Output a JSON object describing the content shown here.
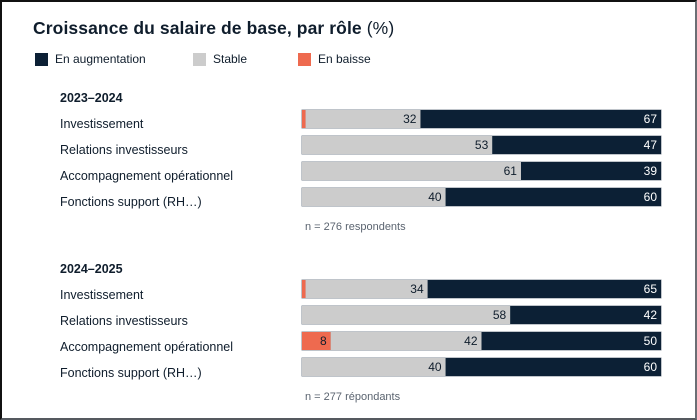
{
  "chart_data": {
    "type": "bar",
    "orientation": "horizontal",
    "stacked": true,
    "normalized_100": true,
    "title": "Croissance du salaire de base, par rôle",
    "title_suffix": "(%)",
    "xlabel": "",
    "ylabel": "",
    "xlim": [
      0,
      100
    ],
    "grid": false,
    "legend_position": "top-left",
    "legend": [
      {
        "key": "increase",
        "label": "En augmentation",
        "color": "#0c2035"
      },
      {
        "key": "stable",
        "label": "Stable",
        "color": "#cccccc"
      },
      {
        "key": "decrease",
        "label": "En baisse",
        "color": "#ee6a4f"
      }
    ],
    "stack_order": [
      "decrease",
      "stable",
      "increase"
    ],
    "panels": [
      {
        "title": "2023–2024",
        "note": "n = 276 respondents",
        "categories": [
          "Investissement",
          "Relations investisseurs",
          "Accompagnement opérationnel",
          "Fonctions support (RH…)"
        ],
        "series": [
          {
            "key": "decrease",
            "name": "En baisse",
            "values": [
              1,
              0,
              0,
              0
            ]
          },
          {
            "key": "stable",
            "name": "Stable",
            "values": [
              32,
              53,
              61,
              40
            ]
          },
          {
            "key": "increase",
            "name": "En augmentation",
            "values": [
              67,
              47,
              39,
              60
            ]
          }
        ]
      },
      {
        "title": "2024–2025",
        "note": "n = 277 répondants",
        "categories": [
          "Investissement",
          "Relations investisseurs",
          "Accompagnement opérationnel",
          "Fonctions support (RH…)"
        ],
        "series": [
          {
            "key": "decrease",
            "name": "En baisse",
            "values": [
              1,
              0,
              8,
              0
            ]
          },
          {
            "key": "stable",
            "name": "Stable",
            "values": [
              34,
              58,
              42,
              40
            ]
          },
          {
            "key": "increase",
            "name": "En augmentation",
            "values": [
              65,
              42,
              50,
              60
            ]
          }
        ]
      }
    ]
  }
}
